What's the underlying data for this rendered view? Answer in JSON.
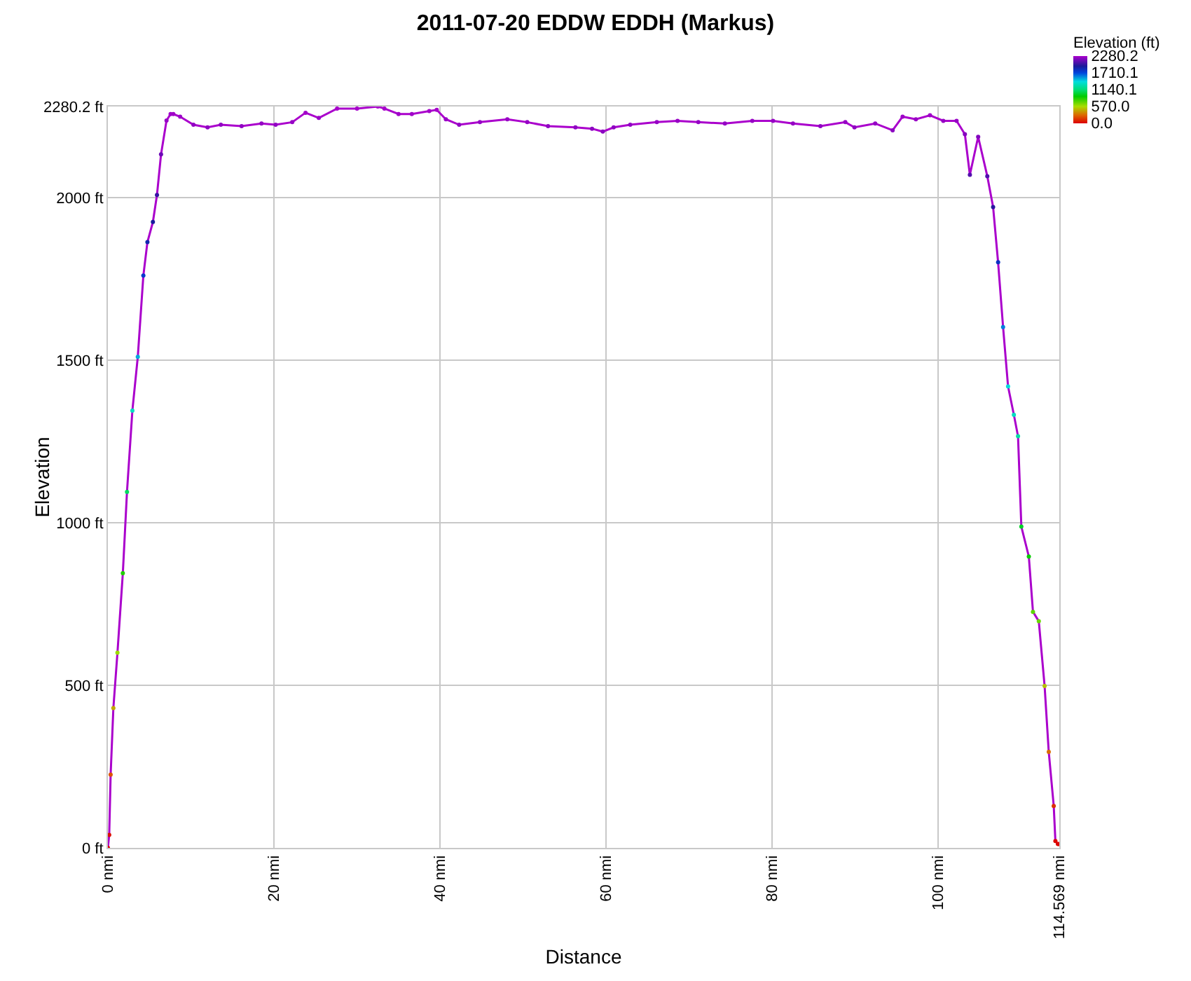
{
  "chart_data": {
    "type": "line",
    "title": "2011-07-20 EDDW EDDH (Markus)",
    "xlabel": "Distance",
    "ylabel": "Elevation",
    "clabel": "Elevation (ft)",
    "x": [
      0,
      0.16,
      0.33,
      0.66,
      1.15,
      1.8,
      2.3,
      2.95,
      3.6,
      4.27,
      4.76,
      5.42,
      5.91,
      6.4,
      7.06,
      7.55,
      7.88,
      8.7,
      10.3,
      12.0,
      13.6,
      16.1,
      18.5,
      20.2,
      22.2,
      23.8,
      25.4,
      27.6,
      30.0,
      32.5,
      33.3,
      35.0,
      36.6,
      38.7,
      39.6,
      40.7,
      42.3,
      44.8,
      48.1,
      50.5,
      53.0,
      56.3,
      58.3,
      59.6,
      60.9,
      62.9,
      66.1,
      68.6,
      71.1,
      74.3,
      77.6,
      80.1,
      82.5,
      85.8,
      88.8,
      89.9,
      92.4,
      94.5,
      95.7,
      97.3,
      99.0,
      100.6,
      102.2,
      103.2,
      103.8,
      104.8,
      105.9,
      106.6,
      107.2,
      107.8,
      108.4,
      109.1,
      109.6,
      110.0,
      110.9,
      111.4,
      112.1,
      112.8,
      113.3,
      113.9,
      114.1,
      114.4,
      114.569
    ],
    "series": [
      {
        "color": "#aa00cc",
        "values": [
          0,
          40,
          225,
          430,
          600,
          845,
          1095,
          1345,
          1510,
          1760,
          1863,
          1925,
          2008,
          2133,
          2237,
          2257,
          2257,
          2249,
          2224,
          2216,
          2224,
          2220,
          2228,
          2224,
          2232,
          2261,
          2245,
          2274,
          2274,
          2280,
          2274,
          2257,
          2257,
          2266,
          2270,
          2241,
          2224,
          2232,
          2241,
          2232,
          2220,
          2216,
          2212,
          2203,
          2216,
          2224,
          2232,
          2236,
          2232,
          2228,
          2236,
          2236,
          2228,
          2220,
          2232,
          2216,
          2228,
          2207,
          2249,
          2241,
          2253,
          2236,
          2236,
          2195,
          2070,
          2187,
          2066,
          1971,
          1801,
          1602,
          1419,
          1332,
          1266,
          988,
          896,
          726,
          697,
          498,
          295,
          129,
          21,
          12,
          12
        ]
      }
    ],
    "xlim": [
      0,
      114.569
    ],
    "ylim": [
      0,
      2280.2
    ],
    "xticks": [
      {
        "value": 0,
        "label": "0 nmi"
      },
      {
        "value": 20,
        "label": "20 nmi"
      },
      {
        "value": 40,
        "label": "40 nmi"
      },
      {
        "value": 60,
        "label": "60 nmi"
      },
      {
        "value": 80,
        "label": "80 nmi"
      },
      {
        "value": 100,
        "label": "100 nmi"
      },
      {
        "value": 114.569,
        "label": "114.569 nmi"
      }
    ],
    "yticks": [
      {
        "value": 0,
        "label": "0 ft"
      },
      {
        "value": 500,
        "label": "500 ft"
      },
      {
        "value": 1000,
        "label": "1000 ft"
      },
      {
        "value": 1500,
        "label": "1500 ft"
      },
      {
        "value": 2000,
        "label": "2000 ft"
      },
      {
        "value": 2280.2,
        "label": "2280.2 ft"
      }
    ],
    "clim": [
      0,
      2280.2
    ],
    "cticks": [
      {
        "value": 2280.2,
        "label": "2280.2"
      },
      {
        "value": 1710.1,
        "label": "1710.1"
      },
      {
        "value": 1140.1,
        "label": "1140.1"
      },
      {
        "value": 570.0,
        "label": "570.0"
      },
      {
        "value": 0,
        "label": "0.0"
      }
    ],
    "grid": true,
    "marker": "circle"
  }
}
